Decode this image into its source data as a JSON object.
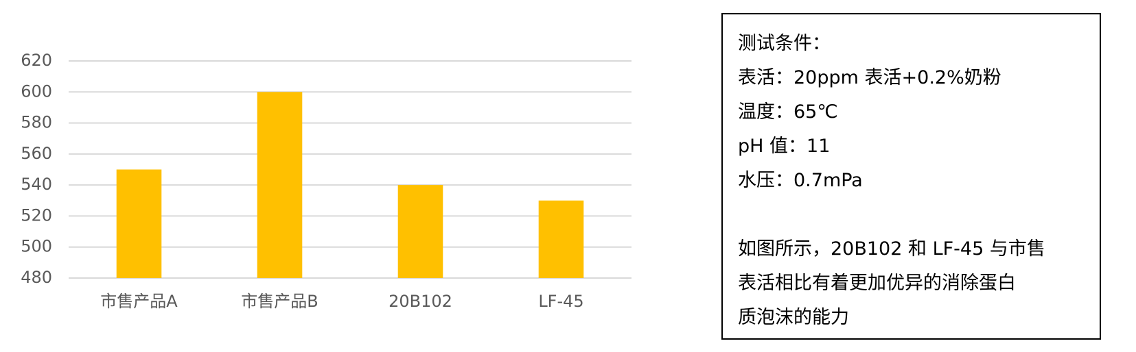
{
  "chart_data": {
    "type": "bar",
    "categories": [
      "市售产品A",
      "市售产品B",
      "20B102",
      "LF-45"
    ],
    "values": [
      550,
      600,
      540,
      530
    ],
    "color": "#ffc000",
    "ylim": [
      480,
      620
    ],
    "yticks": [
      480,
      500,
      520,
      540,
      560,
      580,
      600,
      620
    ],
    "grid": true
  },
  "note": {
    "lines": [
      "测试条件：",
      "表活：20ppm 表活+0.2%奶粉",
      "温度：65℃",
      "pH 值：11",
      "水压：0.7mPa"
    ],
    "conclusion": [
      "如图所示，20B102 和 LF-45 与市售",
      "表活相比有着更加优异的消除蛋白",
      "质泡沫的能力"
    ]
  }
}
